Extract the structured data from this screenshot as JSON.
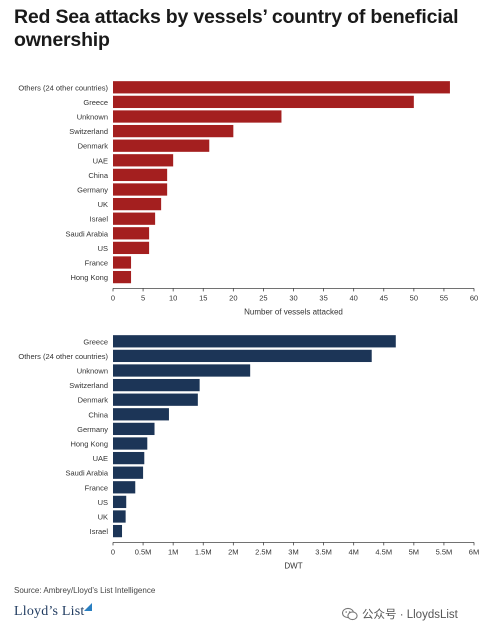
{
  "title": "Red Sea attacks by vessels’ country of beneficial ownership",
  "colors": {
    "vessels": "#a41f1f",
    "dwt": "#1c3557",
    "axis": "#333333"
  },
  "chart_data": [
    {
      "type": "bar",
      "orientation": "horizontal",
      "categories": [
        "Others (24 other countries)",
        "Greece",
        "Unknown",
        "Switzerland",
        "Denmark",
        "UAE",
        "China",
        "Germany",
        "UK",
        "Israel",
        "Saudi Arabia",
        "US",
        "France",
        "Hong Kong"
      ],
      "values": [
        56,
        50,
        28,
        20,
        16,
        10,
        9,
        9,
        8,
        7,
        6,
        6,
        3,
        3
      ],
      "xlabel": "Number of vessels attacked",
      "xlim": [
        0,
        60
      ],
      "xticks": [
        "0",
        "5",
        "10",
        "15",
        "20",
        "25",
        "30",
        "35",
        "40",
        "45",
        "50",
        "55",
        "60"
      ],
      "grid": false
    },
    {
      "type": "bar",
      "orientation": "horizontal",
      "categories": [
        "Greece",
        "Others (24 other countries)",
        "Unknown",
        "Switzerland",
        "Denmark",
        "China",
        "Germany",
        "Hong Kong",
        "UAE",
        "Saudi Arabia",
        "France",
        "US",
        "UK",
        "Israel"
      ],
      "values": [
        4700000,
        4300000,
        2280000,
        1440000,
        1410000,
        930000,
        690000,
        570000,
        520000,
        500000,
        370000,
        220000,
        210000,
        150000
      ],
      "xlabel": "DWT",
      "xlim": [
        0,
        6000000
      ],
      "xticks": [
        "0",
        "0.5M",
        "1M",
        "1.5M",
        "2M",
        "2.5M",
        "3M",
        "3.5M",
        "4M",
        "4.5M",
        "5M",
        "5.5M",
        "6M"
      ],
      "grid": false
    }
  ],
  "source": "Source: Ambrey/Lloyd’s List Intelligence",
  "logo": "Lloyd’s List",
  "watermark": "公众号 · LloydsList"
}
